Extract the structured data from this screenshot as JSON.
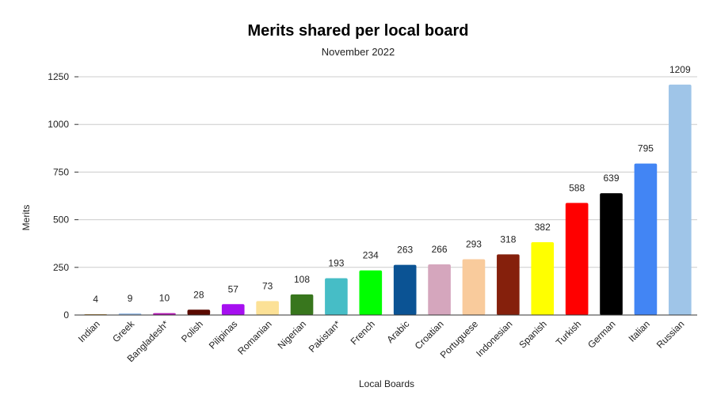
{
  "chart_data": {
    "type": "bar",
    "title": "Merits shared per local board",
    "subtitle": "November 2022",
    "xlabel": "Local Boards",
    "ylabel": "Merits",
    "ylim": [
      0,
      1250
    ],
    "yticks": [
      0,
      250,
      500,
      750,
      1000,
      1250
    ],
    "grid": true,
    "legend": "none",
    "categories": [
      "Indian",
      "Greek",
      "Bangladesh*",
      "Polish",
      "Pilipinas",
      "Romanian",
      "Nigerian",
      "Pakistan*",
      "French",
      "Arabic",
      "Croatian",
      "Portuguese",
      "Indonesian",
      "Spanish",
      "Turkish",
      "German",
      "Italian",
      "Russian"
    ],
    "values": [
      4,
      9,
      10,
      28,
      57,
      73,
      108,
      193,
      234,
      263,
      266,
      293,
      318,
      382,
      588,
      639,
      795,
      1209
    ],
    "colors": [
      "#b88a3a",
      "#9fc0e8",
      "#b418b4",
      "#5a0a00",
      "#a60ff0",
      "#fce196",
      "#38761d",
      "#46bdc6",
      "#00ff00",
      "#0b5394",
      "#d5a6bd",
      "#f9cb9c",
      "#85200c",
      "#ffff00",
      "#ff0000",
      "#000000",
      "#4285f4",
      "#9fc5e8"
    ]
  }
}
